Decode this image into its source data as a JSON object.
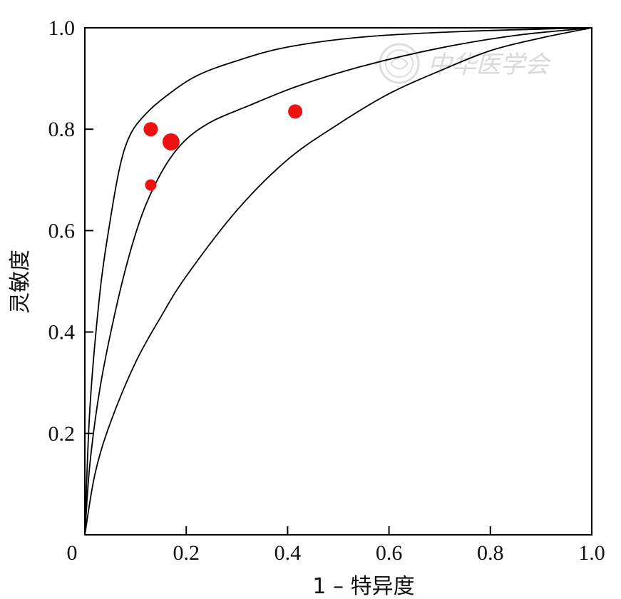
{
  "chart_data": {
    "type": "scatter",
    "xlabel": "1 – 特异度",
    "ylabel": "灵敏度",
    "xlim": [
      0,
      1
    ],
    "ylim": [
      0,
      1
    ],
    "x_ticks": [
      {
        "value": 0,
        "label": "0"
      },
      {
        "value": 0.2,
        "label": "0.2"
      },
      {
        "value": 0.4,
        "label": "0.4"
      },
      {
        "value": 0.6,
        "label": "0.6"
      },
      {
        "value": 0.8,
        "label": "0.8"
      },
      {
        "value": 1.0,
        "label": "1.0"
      }
    ],
    "y_ticks": [
      {
        "value": 0.2,
        "label": "0.2"
      },
      {
        "value": 0.4,
        "label": "0.4"
      },
      {
        "value": 0.6,
        "label": "0.6"
      },
      {
        "value": 0.8,
        "label": "0.8"
      },
      {
        "value": 1.0,
        "label": "1.0"
      }
    ],
    "grid": false,
    "points": [
      {
        "x": 0.13,
        "y": 0.8,
        "size": "medium"
      },
      {
        "x": 0.17,
        "y": 0.775,
        "size": "large"
      },
      {
        "x": 0.13,
        "y": 0.69,
        "size": "small"
      },
      {
        "x": 0.415,
        "y": 0.835,
        "size": "medium"
      }
    ],
    "point_color": "#ee1111",
    "curves": [
      {
        "points": [
          [
            0,
            0
          ],
          [
            0.01,
            0.25
          ],
          [
            0.03,
            0.48
          ],
          [
            0.05,
            0.62
          ],
          [
            0.07,
            0.73
          ],
          [
            0.09,
            0.79
          ],
          [
            0.12,
            0.83
          ],
          [
            0.16,
            0.865
          ],
          [
            0.22,
            0.905
          ],
          [
            0.3,
            0.935
          ],
          [
            0.4,
            0.962
          ],
          [
            0.55,
            0.982
          ],
          [
            0.75,
            0.993
          ],
          [
            1,
            1
          ]
        ]
      },
      {
        "points": [
          [
            0,
            0
          ],
          [
            0.01,
            0.14
          ],
          [
            0.03,
            0.29
          ],
          [
            0.06,
            0.44
          ],
          [
            0.09,
            0.56
          ],
          [
            0.12,
            0.65
          ],
          [
            0.16,
            0.73
          ],
          [
            0.2,
            0.78
          ],
          [
            0.25,
            0.815
          ],
          [
            0.32,
            0.845
          ],
          [
            0.42,
            0.885
          ],
          [
            0.55,
            0.925
          ],
          [
            0.7,
            0.96
          ],
          [
            0.85,
            0.985
          ],
          [
            1,
            1
          ]
        ]
      },
      {
        "points": [
          [
            0,
            0
          ],
          [
            0.02,
            0.12
          ],
          [
            0.05,
            0.22
          ],
          [
            0.1,
            0.34
          ],
          [
            0.15,
            0.43
          ],
          [
            0.2,
            0.51
          ],
          [
            0.3,
            0.64
          ],
          [
            0.4,
            0.74
          ],
          [
            0.5,
            0.81
          ],
          [
            0.6,
            0.87
          ],
          [
            0.7,
            0.915
          ],
          [
            0.8,
            0.955
          ],
          [
            0.9,
            0.98
          ],
          [
            1,
            1
          ]
        ]
      }
    ],
    "curve_color": "#000000"
  },
  "watermark": {
    "text": "中华医学会",
    "color": "#d9d9d9"
  }
}
